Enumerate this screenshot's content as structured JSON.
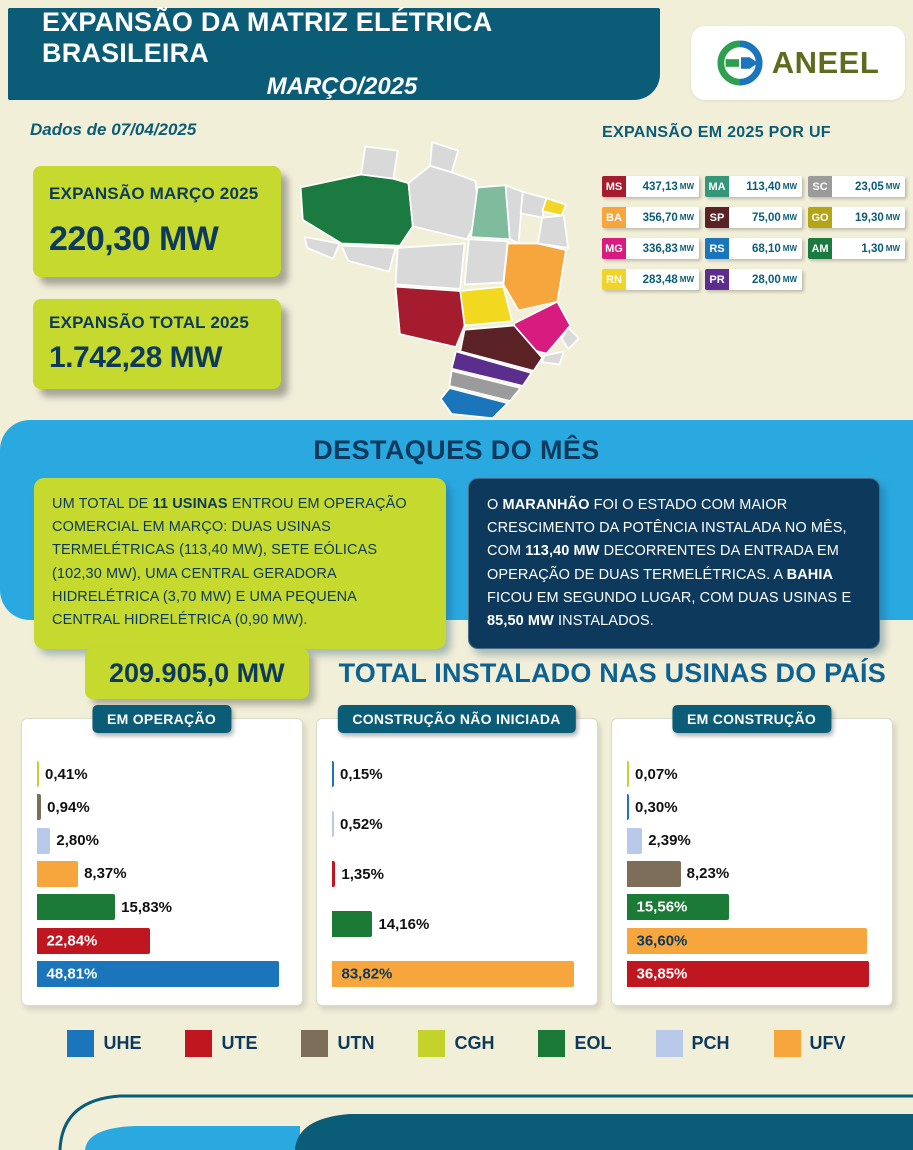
{
  "colors": {
    "page_background": "#f2efd9",
    "header_teal": "#0b5c77",
    "navy": "#0d3a5c",
    "lime": "#c5d92e",
    "band_blue": "#2aa9e0",
    "heading_blue": "#0d6293",
    "aneel_symbol_green": "#2e9e4f",
    "aneel_symbol_blue": "#1b75bb",
    "aneel_wordmark": "#5f6b1f"
  },
  "header": {
    "title_line1": "EXPANSÃO DA MATRIZ ELÉTRICA BRASILEIRA",
    "title_line2": "MARÇO/2025",
    "logo_text": "ANEEL"
  },
  "date_note": "Dados de 07/04/2025",
  "summary_boxes": [
    {
      "label": "EXPANSÃO MARÇO 2025",
      "value": "220,30 MW"
    },
    {
      "label": "EXPANSÃO TOTAL 2025",
      "value": "1.742,28 MW"
    }
  ],
  "uf_panel": {
    "title": "EXPANSÃO EM 2025 POR UF",
    "unit": "MW",
    "items": [
      {
        "uf": "MS",
        "value": "437,13",
        "color": "#a51c2f"
      },
      {
        "uf": "MA",
        "value": "113,40",
        "color": "#35967a"
      },
      {
        "uf": "SC",
        "value": "23,05",
        "color": "#9b9b9b"
      },
      {
        "uf": "BA",
        "value": "356,70",
        "color": "#f6a63c"
      },
      {
        "uf": "SP",
        "value": "75,00",
        "color": "#5a2225"
      },
      {
        "uf": "GO",
        "value": "19,30",
        "color": "#b3a516"
      },
      {
        "uf": "MG",
        "value": "336,83",
        "color": "#d81b7f"
      },
      {
        "uf": "RS",
        "value": "68,10",
        "color": "#1b75bb"
      },
      {
        "uf": "AM",
        "value": "1,30",
        "color": "#1b7a40"
      },
      {
        "uf": "RN",
        "value": "283,48",
        "color": "#f0d427"
      },
      {
        "uf": "PR",
        "value": "28,00",
        "color": "#5b2e8e"
      }
    ]
  },
  "map": {
    "default_color": "#d9d9d9",
    "state_colors": {
      "AM": "#1b7a40",
      "MA": "#7fbc9d",
      "RN": "#f2d527",
      "BA": "#f6a63c",
      "GO": "#f2d91f",
      "MS": "#a51c2f",
      "MG": "#d81b7f",
      "SP": "#5a2225",
      "PR": "#5b2e8e",
      "SC": "#9b9b9b",
      "RS": "#1b75bb"
    }
  },
  "highlights": {
    "title": "DESTAQUES DO MÊS",
    "left_text": "UM TOTAL DE **11 USINAS** ENTROU EM OPERAÇÃO COMERCIAL EM MARÇO: DUAS USINAS TERMELÉTRICAS (113,40 MW), SETE EÓLICAS (102,30 MW), UMA CENTRAL GERADORA HIDRELÉTRICA (3,70 MW) E UMA PEQUENA CENTRAL HIDRELÉTRICA (0,90 MW).",
    "right_text": "O **MARANHÃO** FOI O ESTADO COM MAIOR CRESCIMENTO DA POTÊNCIA INSTALADA NO MÊS, COM **113,40 MW** DECORRENTES DA ENTRADA EM OPERAÇÃO DE DUAS TERMELÉTRICAS. A **BAHIA** FICOU EM SEGUNDO LUGAR, COM DUAS USINAS E **85,50 MW** INSTALADOS."
  },
  "total_installed": {
    "value": "209.905,0 MW",
    "title": "TOTAL INSTALADO NAS USINAS DO PAÍS"
  },
  "chart_data": [
    {
      "type": "bar",
      "orientation": "horizontal",
      "title": "EM OPERAÇÃO",
      "unit": "%",
      "bars": [
        {
          "type": "CGH",
          "label": "0,41%",
          "value": 0.41
        },
        {
          "type": "UTN",
          "label": "0,94%",
          "value": 0.94
        },
        {
          "type": "PCH",
          "label": "2,80%",
          "value": 2.8
        },
        {
          "type": "UFV",
          "label": "8,37%",
          "value": 8.37
        },
        {
          "type": "EOL",
          "label": "15,83%",
          "value": 15.83
        },
        {
          "type": "UTE",
          "label": "22,84%",
          "value": 22.84
        },
        {
          "type": "UHE",
          "label": "48,81%",
          "value": 48.81
        }
      ]
    },
    {
      "type": "bar",
      "orientation": "horizontal",
      "title": "CONSTRUÇÃO NÃO INICIADA",
      "unit": "%",
      "bars": [
        {
          "type": "UHE",
          "label": "0,15%",
          "value": 0.15
        },
        {
          "type": "PCH",
          "label": "0,52%",
          "value": 0.52
        },
        {
          "type": "UTE",
          "label": "1,35%",
          "value": 1.35
        },
        {
          "type": "EOL",
          "label": "14,16%",
          "value": 14.16
        },
        {
          "type": "UFV",
          "label": "83,82%",
          "value": 83.82
        }
      ]
    },
    {
      "type": "bar",
      "orientation": "horizontal",
      "title": "EM CONSTRUÇÃO",
      "unit": "%",
      "bars": [
        {
          "type": "CGH",
          "label": "0,07%",
          "value": 0.07
        },
        {
          "type": "UHE",
          "label": "0,30%",
          "value": 0.3
        },
        {
          "type": "PCH",
          "label": "2,39%",
          "value": 2.39
        },
        {
          "type": "UTN",
          "label": "8,23%",
          "value": 8.23
        },
        {
          "type": "EOL",
          "label": "15,56%",
          "value": 15.56
        },
        {
          "type": "UFV",
          "label": "36,60%",
          "value": 36.6
        },
        {
          "type": "UTE",
          "label": "36,85%",
          "value": 36.85
        }
      ]
    }
  ],
  "legend": [
    {
      "code": "UHE",
      "color": "#1b75bb"
    },
    {
      "code": "UTE",
      "color": "#c0161f"
    },
    {
      "code": "UTN",
      "color": "#7d6e5a"
    },
    {
      "code": "CGH",
      "color": "#c3d32b"
    },
    {
      "code": "EOL",
      "color": "#1b7a35"
    },
    {
      "code": "PCH",
      "color": "#b9c9ea"
    },
    {
      "code": "UFV",
      "color": "#f6a63c"
    }
  ]
}
